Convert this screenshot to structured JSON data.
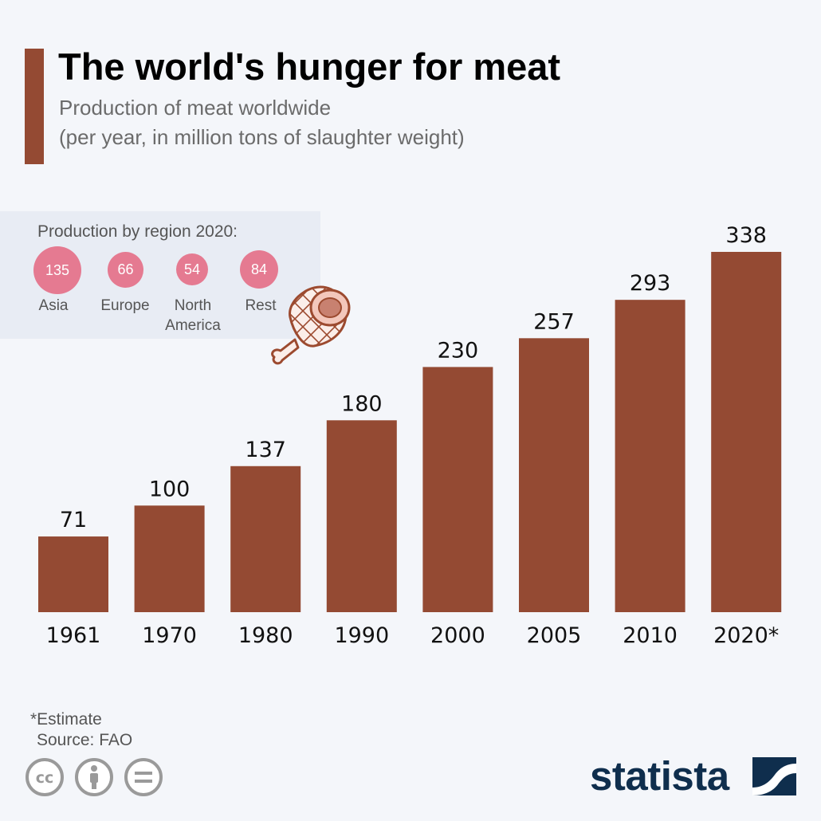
{
  "header": {
    "title": "The world's hunger for meat",
    "subtitle_line1": "Production of meat worldwide",
    "subtitle_line2": "(per year, in million tons of slaughter weight)"
  },
  "regions": {
    "title": "Production by region 2020:",
    "items": [
      {
        "value": "135",
        "label": "Asia"
      },
      {
        "value": "66",
        "label": "Europe"
      },
      {
        "value": "54",
        "label": "North\nAmerica"
      },
      {
        "value": "84",
        "label": "Rest"
      }
    ]
  },
  "chart_data": {
    "type": "bar",
    "categories": [
      "1961",
      "1970",
      "1980",
      "1990",
      "2000",
      "2005",
      "2010",
      "2020*"
    ],
    "values": [
      71,
      100,
      137,
      180,
      230,
      257,
      293,
      338
    ],
    "title": "The world's hunger for meat",
    "xlabel": "",
    "ylabel": "",
    "ylim": [
      0,
      338
    ],
    "grid": false,
    "data_labels": true,
    "bar_color": "#944a33"
  },
  "footer": {
    "footnote": "*Estimate",
    "source": "Source: FAO",
    "brand": "statista"
  },
  "colors": {
    "accent": "#944a33",
    "region_circle": "#e57a91",
    "brand": "#0f2e4d"
  },
  "icons": [
    "meat-ham-icon",
    "cc-license-icon",
    "attribution-icon",
    "no-derivatives-icon",
    "statista-logo-mark-icon"
  ]
}
